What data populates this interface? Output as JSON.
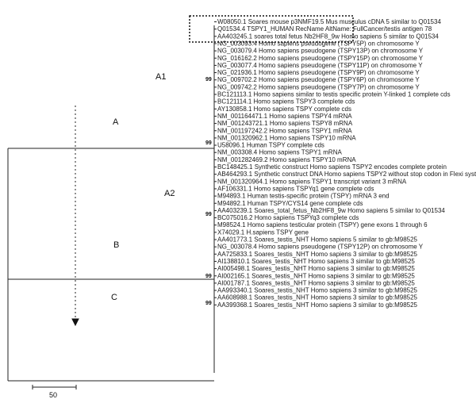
{
  "tree": {
    "leaves": [
      "W08050.1 Soares mouse p3NMF19.5 Mus musculus cDNA 5 similar to Q01534",
      "Q01534.4 TSPY1_HUMAN RecName AltName: FullCancer/testis antigen 78",
      "AA403245.1 soares total fetus Nb2HF8_9w Homo sapiens 5 similar to Q01534",
      "NG_003093.4 Homo sapiens pseudogene (TSPY5P) on chromosome Y",
      "NG_003079.4 Homo sapiens pseudogene (TSPY13P) on chromosome Y",
      "NG_016162.2 Homo sapiens pseudogene (TSPY15P) on chromosome Y",
      "NG_003077.4 Homo sapiens pseudogene (TSPY11P) on chromosome Y",
      "NG_021936.1 Homo sapiens pseudogene (TSPY9P) on chromosome Y",
      "NG_009702.2 Homo sapiens pseudogene (TSPY6P) on chromosome Y",
      "NG_009742.2 Homo sapiens pseudogene (TSPY7P) on chromosome Y",
      "BC121113.1 Homo sapiens similar to testis specific protein Y-linked 1 complete cds",
      "BC121114.1 Homo sapiens TSPY3 complete cds",
      "AY130858.1 Homo sapiens TSPY complete cds",
      "NM_001164471.1 Homo sapiens TSPY4 mRNA",
      "NM_001243721.1 Homo sapiens TSPY8 mRNA",
      "NM_001197242.2 Homo sapiens TSPY1 mRNA",
      "NM_001320962.1 Homo sapiens TSPY10 mRNA",
      "U58096.1 Human TSPY complete cds",
      "NM_003308.4 Homo sapiens TSPY1 mRNA",
      "NM_001282469.2 Homo sapiens TSPY10 mRNA",
      "BC148425.1 Synthetic construct Homo sapiens TSPY2 encodes complete protein",
      "AB464293.1 Synthetic construct DNA Homo sapiens TSPY2 without stop codon in Flexi system",
      "NM_001320964.1 Homo sapiens TSPY1 transcript variant 3 mRNA",
      "AF106331.1 Homo sapiens TSPYq1 gene complete cds",
      "M94893.1 Human testis-specific protein (TSPY) mRNA 3 end",
      "M94892.1 Human TSPY/CYS14 gene complete cds",
      "AA403239.1 Soares_total_fetus_Nb2HF8_9w Homo sapiens 5 similar to Q01534",
      "BC075016.2 Homo sapiens TSPYq3 complete cds",
      "M98524.1 Homo sapiens testicular protein (TSPY) gene exons 1 through 6",
      "X74029.1 H.sapiens TSPY gene",
      "AA401773.1 Soares_testis_NHT Homo sapiens 5 similar to gb:M98525",
      "NG_003078.4 Homo sapiens pseudogene (TSPY12P) on chromosome Y",
      "AA725833.1 Soares_testis_NHT Homo sapiens 3 similar to gb:M98525",
      "AI138810.1 Soares_testis_NHT Homo sapiens 3 similar to gb:M98525",
      "AI005498.1 Soares_testis_NHT Homo sapiens 3 similar to gb:M98525",
      "AI002165.1 Soares_testis_NHT Homo sapiens 3 similar to gb:M98525",
      "AI001787.1 Soares_testis_NHT Homo sapiens 3 similar to gb:M98525",
      "AA993340.1 Soares_testis_NHT Homo sapiens 3 similar to gb:M98525",
      "AA608988.1 Soares_testis_NHT Homo sapiens 3 similar to gb:M98525",
      "AA399368.1 Soares_testis_NHT Homo sapiens 3 similar to gb:M98525"
    ],
    "bootstrap_values": [
      "99",
      "99",
      "99",
      "99",
      "99"
    ],
    "clade_labels": [
      "A1",
      "A",
      "A2",
      "B",
      "C"
    ],
    "scale_bar_label": "50"
  }
}
